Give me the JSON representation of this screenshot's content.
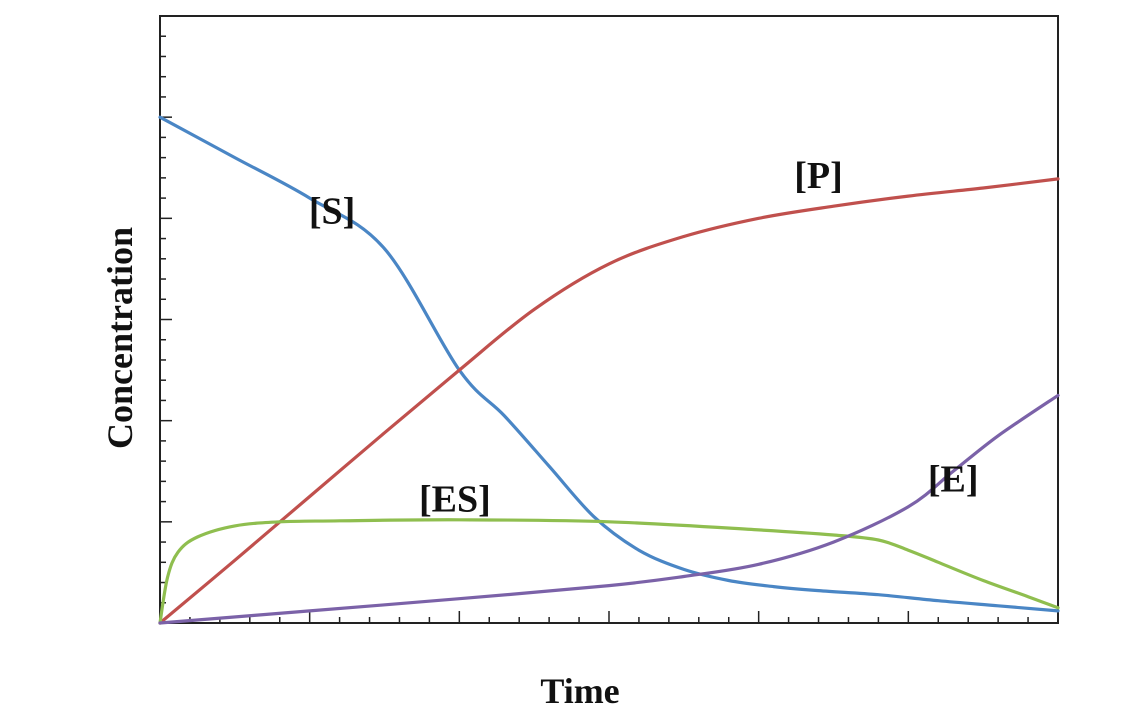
{
  "chart_data": {
    "type": "line",
    "title": "",
    "xlabel": "Time",
    "ylabel": "Concentration",
    "xlim": [
      0,
      6
    ],
    "ylim": [
      0,
      6
    ],
    "x_major_ticks": [
      1,
      2,
      3,
      4,
      5
    ],
    "y_major_ticks": [
      1,
      2,
      3,
      4,
      5
    ],
    "minor_per_major": 5,
    "grid": false,
    "legend": "none",
    "series": [
      {
        "name": "[S]",
        "color": "#4a86c5",
        "x": [
          0,
          0.5,
          1,
          1.5,
          2,
          2.3,
          2.6,
          2.9,
          3.2,
          3.5,
          3.8,
          4.1,
          4.4,
          4.8,
          5.2,
          5.6,
          6.0
        ],
        "y": [
          5.0,
          4.6,
          4.2,
          3.7,
          2.5,
          2.05,
          1.55,
          1.05,
          0.72,
          0.53,
          0.42,
          0.36,
          0.32,
          0.28,
          0.22,
          0.17,
          0.12
        ]
      },
      {
        "name": "[P]",
        "color": "#c0504d",
        "x": [
          0,
          0.5,
          1,
          1.5,
          2,
          2.5,
          3.0,
          3.5,
          4.0,
          4.5,
          5.0,
          5.5,
          6.0
        ],
        "y": [
          0,
          0.62,
          1.25,
          1.88,
          2.5,
          3.1,
          3.55,
          3.82,
          4.0,
          4.12,
          4.22,
          4.3,
          4.39
        ]
      },
      {
        "name": "[ES]",
        "color": "#8fbe4f",
        "x": [
          0,
          0.05,
          0.12,
          0.25,
          0.5,
          0.8,
          1.2,
          2.0,
          3.0,
          4.0,
          4.5,
          4.8,
          5.0,
          5.2,
          5.5,
          5.8,
          6.0
        ],
        "y": [
          0,
          0.45,
          0.7,
          0.85,
          0.96,
          1.0,
          1.01,
          1.02,
          1.0,
          0.92,
          0.87,
          0.82,
          0.72,
          0.6,
          0.42,
          0.26,
          0.15
        ]
      },
      {
        "name": "[E]",
        "color": "#7b62a8",
        "x": [
          0,
          1,
          2,
          3,
          3.5,
          4.0,
          4.5,
          5.0,
          5.3,
          5.6,
          6.0
        ],
        "y": [
          0,
          0.12,
          0.24,
          0.37,
          0.46,
          0.58,
          0.8,
          1.15,
          1.5,
          1.85,
          2.25
        ]
      }
    ],
    "annotations": [
      {
        "text": "[S]",
        "x": 1.15,
        "y": 3.95
      },
      {
        "text": "[P]",
        "x": 4.4,
        "y": 4.3
      },
      {
        "text": "[ES]",
        "x": 1.97,
        "y": 1.1
      },
      {
        "text": "[E]",
        "x": 5.3,
        "y": 1.3
      }
    ]
  }
}
